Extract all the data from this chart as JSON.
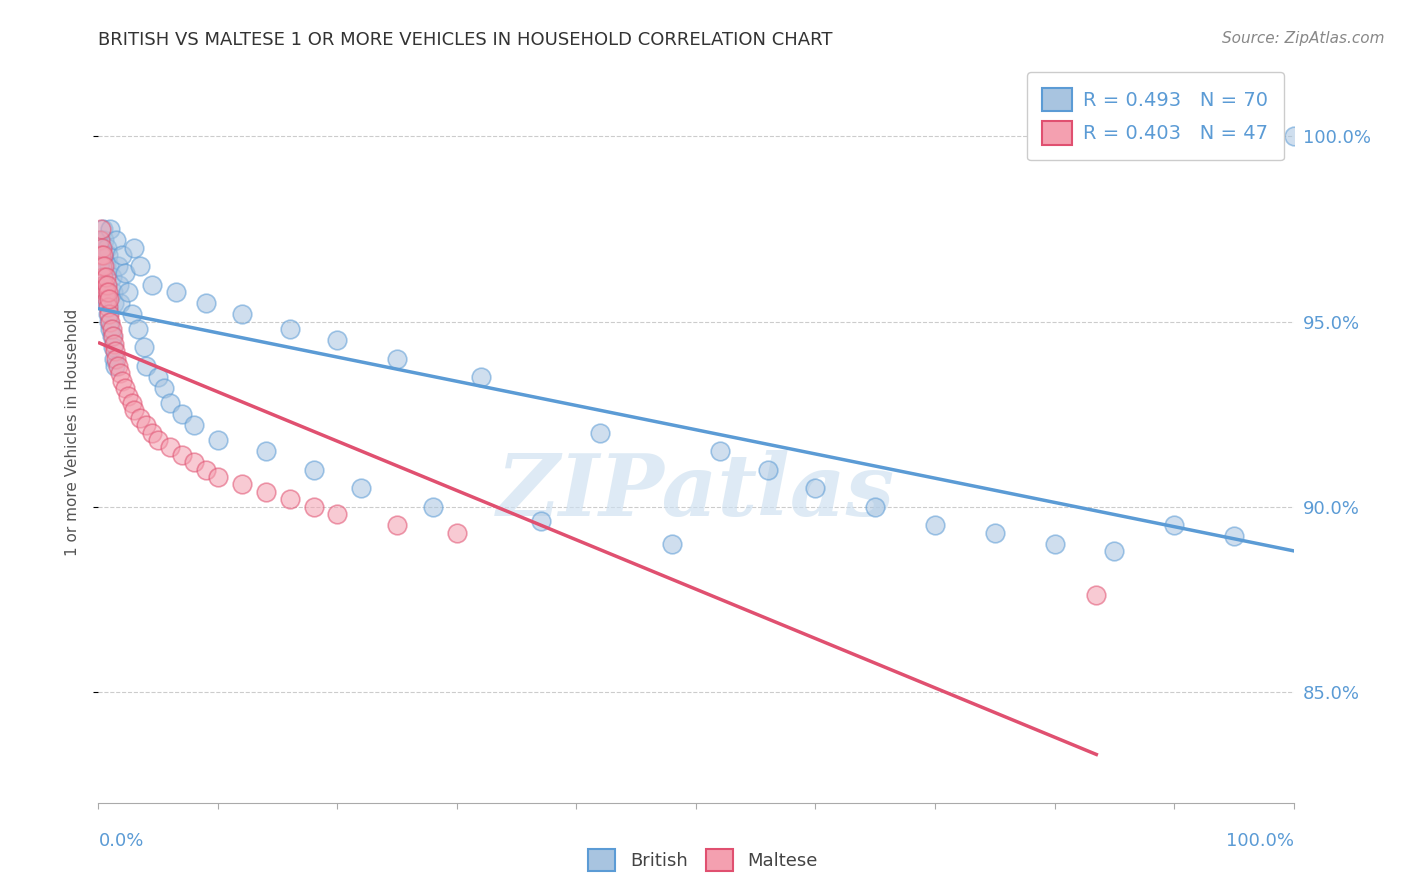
{
  "title": "BRITISH VS MALTESE 1 OR MORE VEHICLES IN HOUSEHOLD CORRELATION CHART",
  "source": "Source: ZipAtlas.com",
  "ylabel": "1 or more Vehicles in Household",
  "watermark": "ZIPatlas",
  "legend_british_r": 0.493,
  "legend_british_n": 70,
  "legend_maltese_r": 0.403,
  "legend_maltese_n": 47,
  "xlim": [
    0.0,
    1.0
  ],
  "ylim": [
    0.82,
    1.02
  ],
  "yticks": [
    0.85,
    0.9,
    0.95,
    1.0
  ],
  "ytick_labels": [
    "85.0%",
    "90.0%",
    "95.0%",
    "100.0%"
  ],
  "grid_color": "#cccccc",
  "british_color": "#a8c4e0",
  "maltese_color": "#f4a0b0",
  "trendline_british_color": "#5b9bd5",
  "trendline_maltese_color": "#e05070",
  "title_color": "#333333",
  "axis_label_color": "#555555",
  "right_tick_color": "#5b9bd5",
  "british_color_legend": "#a8c4e0",
  "maltese_color_legend": "#f4a0b0",
  "british_x": [
    0.001,
    0.002,
    0.003,
    0.003,
    0.004,
    0.004,
    0.005,
    0.005,
    0.006,
    0.006,
    0.007,
    0.007,
    0.008,
    0.008,
    0.009,
    0.009,
    0.01,
    0.01,
    0.011,
    0.011,
    0.012,
    0.012,
    0.013,
    0.013,
    0.014,
    0.015,
    0.016,
    0.017,
    0.018,
    0.02,
    0.022,
    0.025,
    0.028,
    0.03,
    0.033,
    0.035,
    0.038,
    0.04,
    0.045,
    0.05,
    0.055,
    0.06,
    0.065,
    0.07,
    0.08,
    0.09,
    0.1,
    0.12,
    0.14,
    0.16,
    0.18,
    0.2,
    0.22,
    0.25,
    0.28,
    0.32,
    0.37,
    0.42,
    0.48,
    0.52,
    0.56,
    0.6,
    0.65,
    0.7,
    0.75,
    0.8,
    0.85,
    0.9,
    0.95,
    1.0
  ],
  "british_y": [
    0.97,
    0.972,
    0.968,
    0.965,
    0.963,
    0.975,
    0.96,
    0.972,
    0.958,
    0.965,
    0.955,
    0.97,
    0.952,
    0.968,
    0.95,
    0.965,
    0.948,
    0.975,
    0.946,
    0.962,
    0.943,
    0.958,
    0.94,
    0.955,
    0.938,
    0.972,
    0.965,
    0.96,
    0.955,
    0.968,
    0.963,
    0.958,
    0.952,
    0.97,
    0.948,
    0.965,
    0.943,
    0.938,
    0.96,
    0.935,
    0.932,
    0.928,
    0.958,
    0.925,
    0.922,
    0.955,
    0.918,
    0.952,
    0.915,
    0.948,
    0.91,
    0.945,
    0.905,
    0.94,
    0.9,
    0.935,
    0.896,
    0.92,
    0.89,
    0.915,
    0.91,
    0.905,
    0.9,
    0.895,
    0.893,
    0.89,
    0.888,
    0.895,
    0.892,
    1.0
  ],
  "maltese_x": [
    0.001,
    0.002,
    0.002,
    0.003,
    0.003,
    0.004,
    0.004,
    0.005,
    0.005,
    0.006,
    0.006,
    0.007,
    0.007,
    0.008,
    0.008,
    0.009,
    0.009,
    0.01,
    0.011,
    0.012,
    0.013,
    0.014,
    0.015,
    0.016,
    0.018,
    0.02,
    0.022,
    0.025,
    0.028,
    0.03,
    0.035,
    0.04,
    0.045,
    0.05,
    0.06,
    0.07,
    0.08,
    0.09,
    0.1,
    0.12,
    0.14,
    0.16,
    0.18,
    0.2,
    0.25,
    0.3,
    0.835
  ],
  "maltese_y": [
    0.972,
    0.968,
    0.975,
    0.965,
    0.97,
    0.962,
    0.968,
    0.96,
    0.965,
    0.958,
    0.962,
    0.956,
    0.96,
    0.954,
    0.958,
    0.952,
    0.956,
    0.95,
    0.948,
    0.946,
    0.944,
    0.942,
    0.94,
    0.938,
    0.936,
    0.934,
    0.932,
    0.93,
    0.928,
    0.926,
    0.924,
    0.922,
    0.92,
    0.918,
    0.916,
    0.914,
    0.912,
    0.91,
    0.908,
    0.906,
    0.904,
    0.902,
    0.9,
    0.898,
    0.895,
    0.893,
    0.876
  ]
}
